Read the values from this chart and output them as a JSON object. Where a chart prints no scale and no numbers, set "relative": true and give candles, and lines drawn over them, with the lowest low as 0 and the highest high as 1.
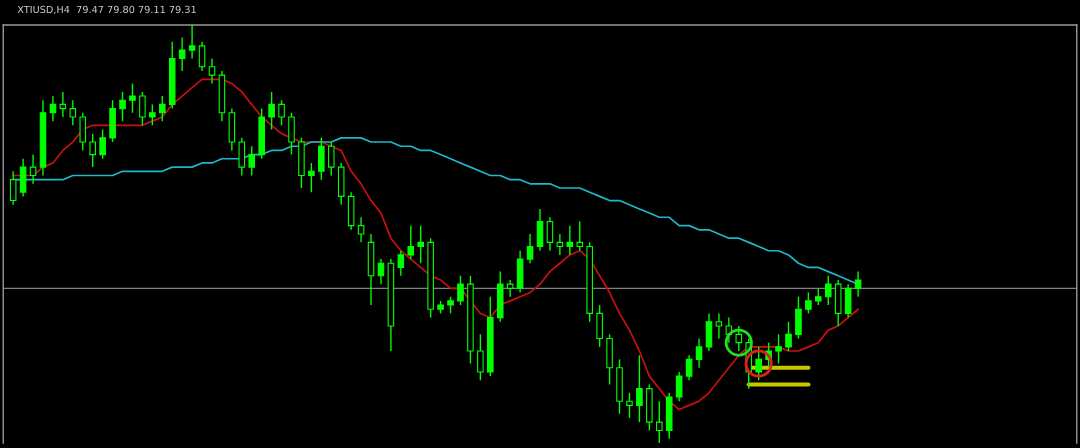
{
  "chart_data": {
    "type": "candlestick",
    "title": "XTIUSD,H4  79.47 79.80 79.11 79.31",
    "relative": true,
    "categories": [
      null,
      null,
      null,
      null,
      null,
      null,
      null,
      null,
      null,
      null,
      null,
      null,
      null,
      null,
      null,
      null,
      null,
      null,
      null,
      null,
      null,
      null,
      null,
      null,
      null,
      null,
      null,
      null,
      null,
      null,
      null,
      null,
      null,
      null,
      null,
      null,
      null,
      null,
      null,
      null,
      null,
      null,
      null,
      null,
      null,
      null,
      null,
      null,
      null,
      null,
      null,
      null,
      null,
      null,
      null,
      null,
      null,
      null,
      null,
      null,
      null,
      null,
      null,
      null,
      null,
      null,
      null,
      null,
      null,
      null,
      null,
      null,
      null,
      null,
      null,
      null,
      null,
      null,
      null,
      null,
      null,
      null,
      null,
      null,
      null,
      null
    ],
    "legend": false,
    "ref_lines": [
      {
        "axis": "y",
        "value": 0.37,
        "color": "#808080",
        "line_style": "solid"
      }
    ],
    "series": [
      {
        "color": "#00ff00",
        "ohlc": [
          [
            0.63,
            0.65,
            0.57,
            0.58
          ],
          [
            0.6,
            0.68,
            0.59,
            0.66
          ],
          [
            0.66,
            0.69,
            0.62,
            0.64
          ],
          [
            0.66,
            0.82,
            0.64,
            0.79
          ],
          [
            0.79,
            0.83,
            0.77,
            0.81
          ],
          [
            0.81,
            0.84,
            0.78,
            0.8
          ],
          [
            0.8,
            0.82,
            0.76,
            0.78
          ],
          [
            0.78,
            0.79,
            0.7,
            0.72
          ],
          [
            0.72,
            0.74,
            0.66,
            0.69
          ],
          [
            0.69,
            0.75,
            0.68,
            0.73
          ],
          [
            0.73,
            0.82,
            0.72,
            0.8
          ],
          [
            0.8,
            0.84,
            0.77,
            0.82
          ],
          [
            0.82,
            0.86,
            0.79,
            0.83
          ],
          [
            0.83,
            0.84,
            0.76,
            0.78
          ],
          [
            0.78,
            0.81,
            0.76,
            0.79
          ],
          [
            0.79,
            0.83,
            0.77,
            0.81
          ],
          [
            0.81,
            0.96,
            0.8,
            0.92
          ],
          [
            0.92,
            0.97,
            0.89,
            0.94
          ],
          [
            0.94,
            1.0,
            0.92,
            0.95
          ],
          [
            0.95,
            0.96,
            0.89,
            0.9
          ],
          [
            0.9,
            0.92,
            0.86,
            0.88
          ],
          [
            0.88,
            0.89,
            0.77,
            0.79
          ],
          [
            0.79,
            0.8,
            0.7,
            0.72
          ],
          [
            0.72,
            0.73,
            0.64,
            0.66
          ],
          [
            0.66,
            0.71,
            0.64,
            0.69
          ],
          [
            0.69,
            0.8,
            0.68,
            0.78
          ],
          [
            0.78,
            0.84,
            0.75,
            0.81
          ],
          [
            0.81,
            0.82,
            0.76,
            0.78
          ],
          [
            0.78,
            0.79,
            0.69,
            0.72
          ],
          [
            0.72,
            0.73,
            0.61,
            0.64
          ],
          [
            0.64,
            0.67,
            0.6,
            0.65
          ],
          [
            0.65,
            0.73,
            0.63,
            0.71
          ],
          [
            0.71,
            0.72,
            0.64,
            0.66
          ],
          [
            0.66,
            0.67,
            0.57,
            0.59
          ],
          [
            0.59,
            0.6,
            0.51,
            0.52
          ],
          [
            0.52,
            0.54,
            0.48,
            0.5
          ],
          [
            0.48,
            0.5,
            0.33,
            0.4
          ],
          [
            0.4,
            0.44,
            0.38,
            0.43
          ],
          [
            0.43,
            0.44,
            0.22,
            0.28
          ],
          [
            0.42,
            0.46,
            0.4,
            0.45
          ],
          [
            0.45,
            0.52,
            0.44,
            0.47
          ],
          [
            0.47,
            0.52,
            0.43,
            0.48
          ],
          [
            0.48,
            0.49,
            0.3,
            0.32
          ],
          [
            0.32,
            0.34,
            0.31,
            0.33
          ],
          [
            0.33,
            0.35,
            0.31,
            0.34
          ],
          [
            0.34,
            0.4,
            0.33,
            0.38
          ],
          [
            0.38,
            0.4,
            0.19,
            0.22
          ],
          [
            0.22,
            0.26,
            0.15,
            0.17
          ],
          [
            0.17,
            0.35,
            0.16,
            0.3
          ],
          [
            0.3,
            0.41,
            0.29,
            0.38
          ],
          [
            0.38,
            0.39,
            0.35,
            0.37
          ],
          [
            0.37,
            0.46,
            0.36,
            0.44
          ],
          [
            0.44,
            0.5,
            0.43,
            0.47
          ],
          [
            0.47,
            0.56,
            0.46,
            0.53
          ],
          [
            0.53,
            0.54,
            0.46,
            0.48
          ],
          [
            0.48,
            0.5,
            0.45,
            0.47
          ],
          [
            0.47,
            0.52,
            0.45,
            0.48
          ],
          [
            0.48,
            0.53,
            0.46,
            0.47
          ],
          [
            0.47,
            0.48,
            0.29,
            0.31
          ],
          [
            0.31,
            0.33,
            0.23,
            0.25
          ],
          [
            0.25,
            0.26,
            0.14,
            0.18
          ],
          [
            0.18,
            0.2,
            0.07,
            0.1
          ],
          [
            0.1,
            0.12,
            0.06,
            0.09
          ],
          [
            0.09,
            0.21,
            0.05,
            0.13
          ],
          [
            0.13,
            0.14,
            0.03,
            0.05
          ],
          [
            0.05,
            0.1,
            0.0,
            0.03
          ],
          [
            0.03,
            0.12,
            0.01,
            0.11
          ],
          [
            0.11,
            0.17,
            0.1,
            0.16
          ],
          [
            0.16,
            0.21,
            0.15,
            0.2
          ],
          [
            0.2,
            0.25,
            0.18,
            0.23
          ],
          [
            0.23,
            0.31,
            0.22,
            0.29
          ],
          [
            0.29,
            0.31,
            0.25,
            0.28
          ],
          [
            0.28,
            0.3,
            0.24,
            0.26
          ],
          [
            0.26,
            0.28,
            0.22,
            0.24
          ],
          [
            0.24,
            0.25,
            0.13,
            0.17
          ],
          [
            0.17,
            0.23,
            0.15,
            0.2
          ],
          [
            0.2,
            0.24,
            0.18,
            0.22
          ],
          [
            0.22,
            0.26,
            0.19,
            0.23
          ],
          [
            0.23,
            0.29,
            0.22,
            0.26
          ],
          [
            0.26,
            0.35,
            0.25,
            0.32
          ],
          [
            0.32,
            0.36,
            0.31,
            0.34
          ],
          [
            0.34,
            0.37,
            0.33,
            0.35
          ],
          [
            0.35,
            0.4,
            0.33,
            0.38
          ],
          [
            0.38,
            0.39,
            0.28,
            0.31
          ],
          [
            0.31,
            0.38,
            0.3,
            0.37
          ],
          [
            0.37,
            0.41,
            0.35,
            0.39
          ]
        ]
      },
      {
        "type": "line",
        "color": "#cc1010",
        "values": [
          0.64,
          0.64,
          0.64,
          0.66,
          0.67,
          0.7,
          0.72,
          0.75,
          0.76,
          0.76,
          0.76,
          0.76,
          0.76,
          0.76,
          0.77,
          0.78,
          0.81,
          0.83,
          0.85,
          0.87,
          0.87,
          0.87,
          0.86,
          0.84,
          0.81,
          0.78,
          0.76,
          0.74,
          0.73,
          0.72,
          0.72,
          0.72,
          0.71,
          0.7,
          0.65,
          0.62,
          0.58,
          0.55,
          0.49,
          0.46,
          0.44,
          0.42,
          0.4,
          0.39,
          0.37,
          0.37,
          0.34,
          0.31,
          0.3,
          0.33,
          0.34,
          0.35,
          0.36,
          0.38,
          0.41,
          0.43,
          0.45,
          0.46,
          0.44,
          0.4,
          0.36,
          0.31,
          0.27,
          0.22,
          0.16,
          0.13,
          0.1,
          0.08,
          0.09,
          0.1,
          0.12,
          0.15,
          0.18,
          0.21,
          0.23,
          0.23,
          0.23,
          0.23,
          0.22,
          0.22,
          0.23,
          0.24,
          0.27,
          0.28,
          0.3,
          0.32
        ]
      },
      {
        "type": "line",
        "color": "#20b8c8",
        "values": [
          0.63,
          0.63,
          0.63,
          0.63,
          0.63,
          0.63,
          0.64,
          0.64,
          0.64,
          0.64,
          0.64,
          0.65,
          0.65,
          0.65,
          0.65,
          0.65,
          0.66,
          0.66,
          0.66,
          0.67,
          0.67,
          0.68,
          0.68,
          0.68,
          0.69,
          0.69,
          0.7,
          0.7,
          0.71,
          0.71,
          0.72,
          0.72,
          0.72,
          0.73,
          0.73,
          0.73,
          0.72,
          0.72,
          0.72,
          0.71,
          0.71,
          0.7,
          0.7,
          0.69,
          0.68,
          0.67,
          0.66,
          0.65,
          0.64,
          0.64,
          0.63,
          0.63,
          0.62,
          0.62,
          0.62,
          0.61,
          0.61,
          0.61,
          0.6,
          0.59,
          0.58,
          0.58,
          0.57,
          0.56,
          0.55,
          0.54,
          0.54,
          0.52,
          0.52,
          0.51,
          0.51,
          0.5,
          0.49,
          0.49,
          0.48,
          0.47,
          0.46,
          0.46,
          0.45,
          0.43,
          0.42,
          0.42,
          0.41,
          0.4,
          0.39,
          0.38
        ]
      },
      {
        "type": "line",
        "color": "#c8c800",
        "values": [
          null,
          null,
          null,
          null,
          null,
          null,
          null,
          null,
          null,
          null,
          null,
          null,
          null,
          null,
          null,
          null,
          null,
          null,
          null,
          null,
          null,
          null,
          null,
          null,
          null,
          null,
          null,
          null,
          null,
          null,
          null,
          null,
          null,
          null,
          null,
          null,
          null,
          null,
          null,
          null,
          null,
          null,
          null,
          null,
          null,
          null,
          null,
          null,
          null,
          null,
          null,
          null,
          null,
          null,
          null,
          null,
          null,
          null,
          null,
          null,
          null,
          null,
          null,
          null,
          null,
          null,
          null,
          null,
          null,
          null,
          null,
          null,
          null,
          null,
          0.18,
          0.18,
          0.18,
          0.18,
          0.18,
          0.18,
          0.18,
          null,
          null,
          null,
          null,
          null
        ]
      },
      {
        "type": "line",
        "color": "#c8c800",
        "values": [
          null,
          null,
          null,
          null,
          null,
          null,
          null,
          null,
          null,
          null,
          null,
          null,
          null,
          null,
          null,
          null,
          null,
          null,
          null,
          null,
          null,
          null,
          null,
          null,
          null,
          null,
          null,
          null,
          null,
          null,
          null,
          null,
          null,
          null,
          null,
          null,
          null,
          null,
          null,
          null,
          null,
          null,
          null,
          null,
          null,
          null,
          null,
          null,
          null,
          null,
          null,
          null,
          null,
          null,
          null,
          null,
          null,
          null,
          null,
          null,
          null,
          null,
          null,
          null,
          null,
          null,
          null,
          null,
          null,
          null,
          null,
          null,
          null,
          null,
          0.14,
          0.14,
          0.14,
          0.14,
          0.14,
          0.14,
          0.14,
          null,
          null,
          null,
          null,
          null
        ]
      },
      {
        "type": "scatter",
        "marker": "circle",
        "color": "#20e020",
        "values": [
          null,
          null,
          null,
          null,
          null,
          null,
          null,
          null,
          null,
          null,
          null,
          null,
          null,
          null,
          null,
          null,
          null,
          null,
          null,
          null,
          null,
          null,
          null,
          null,
          null,
          null,
          null,
          null,
          null,
          null,
          null,
          null,
          null,
          null,
          null,
          null,
          null,
          null,
          null,
          null,
          null,
          null,
          null,
          null,
          null,
          null,
          null,
          null,
          null,
          null,
          null,
          null,
          null,
          null,
          null,
          null,
          null,
          null,
          null,
          null,
          null,
          null,
          null,
          null,
          null,
          null,
          null,
          null,
          null,
          null,
          null,
          null,
          null,
          0.24,
          null,
          null,
          null,
          null,
          null,
          null,
          null,
          null,
          null,
          null,
          null,
          null
        ]
      },
      {
        "type": "scatter",
        "marker": "circle",
        "color": "#e02020",
        "values": [
          null,
          null,
          null,
          null,
          null,
          null,
          null,
          null,
          null,
          null,
          null,
          null,
          null,
          null,
          null,
          null,
          null,
          null,
          null,
          null,
          null,
          null,
          null,
          null,
          null,
          null,
          null,
          null,
          null,
          null,
          null,
          null,
          null,
          null,
          null,
          null,
          null,
          null,
          null,
          null,
          null,
          null,
          null,
          null,
          null,
          null,
          null,
          null,
          null,
          null,
          null,
          null,
          null,
          null,
          null,
          null,
          null,
          null,
          null,
          null,
          null,
          null,
          null,
          null,
          null,
          null,
          null,
          null,
          null,
          null,
          null,
          null,
          null,
          null,
          null,
          0.19,
          null,
          null,
          null,
          null,
          null,
          null,
          null,
          null,
          null,
          null
        ]
      }
    ]
  }
}
